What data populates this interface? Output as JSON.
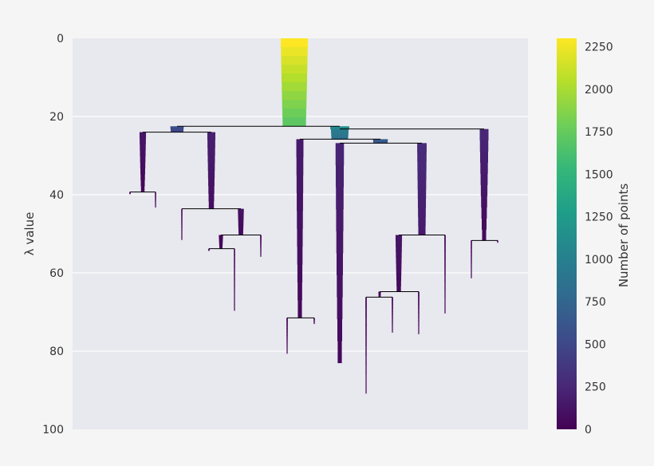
{
  "chart_data": {
    "type": "condensed-tree",
    "title": "",
    "xlabel": "",
    "ylabel": "λ value",
    "ylim": [
      0,
      100
    ],
    "y_inverted": true,
    "yticks": [
      0,
      20,
      40,
      60,
      80,
      100
    ],
    "colorbar": {
      "label": "Number of points",
      "colormap": "viridis",
      "range": [
        0,
        2300
      ],
      "ticks": [
        0,
        250,
        500,
        750,
        1000,
        1250,
        1500,
        1750,
        2000,
        2250
      ]
    },
    "max_points": 2300,
    "root": {
      "lambda_birth": 0,
      "lambda_split": 22.5,
      "points_start": 2300,
      "points_end": 1650
    },
    "clusters": [
      {
        "id": "A",
        "parent": "root",
        "lambda_birth": 22.5,
        "lambda_split": 24.0,
        "points_start": 560,
        "points_end": 480
      },
      {
        "id": "B",
        "parent": "root",
        "lambda_birth": 22.5,
        "lambda_split": 23.2,
        "points_start": 1120,
        "points_end": 1090
      },
      {
        "id": "A1",
        "parent": "A",
        "lambda_birth": 24.0,
        "lambda_split": 39.3,
        "points_start": 130,
        "points_end": 30
      },
      {
        "id": "A2",
        "parent": "A",
        "lambda_birth": 24.0,
        "lambda_split": 43.6,
        "points_start": 200,
        "points_end": 70
      },
      {
        "id": "A1a",
        "parent": "A1",
        "lambda_birth": 39.3,
        "lambda_split": 39.8,
        "points_start": 5,
        "points_end": 3
      },
      {
        "id": "A1b",
        "parent": "A1",
        "lambda_birth": 39.3,
        "lambda_split": 43.2,
        "points_start": 5,
        "points_end": 2
      },
      {
        "id": "A2a",
        "parent": "A2",
        "lambda_birth": 43.6,
        "lambda_split": 51.5,
        "points_start": 5,
        "points_end": 2
      },
      {
        "id": "A2b",
        "parent": "A2",
        "lambda_birth": 43.6,
        "lambda_split": 50.3,
        "points_start": 110,
        "points_end": 60
      },
      {
        "id": "A2b1",
        "parent": "A2b",
        "lambda_birth": 50.3,
        "lambda_split": 53.8,
        "points_start": 55,
        "points_end": 25
      },
      {
        "id": "A2b2",
        "parent": "A2b",
        "lambda_birth": 50.3,
        "lambda_split": 55.8,
        "points_start": 6,
        "points_end": 2
      },
      {
        "id": "A2b1a",
        "parent": "A2b1",
        "lambda_birth": 53.8,
        "lambda_split": 54.3,
        "points_start": 5,
        "points_end": 3
      },
      {
        "id": "A2b1b",
        "parent": "A2b1",
        "lambda_birth": 53.8,
        "lambda_split": 69.6,
        "points_start": 5,
        "points_end": 2
      },
      {
        "id": "B1",
        "parent": "B",
        "lambda_birth": 23.2,
        "lambda_split": 25.8,
        "points_start": 980,
        "points_end": 850
      },
      {
        "id": "B2",
        "parent": "B",
        "lambda_birth": 23.2,
        "lambda_split": 51.7,
        "points_start": 240,
        "points_end": 30
      },
      {
        "id": "B1a",
        "parent": "B1",
        "lambda_birth": 25.8,
        "lambda_split": 71.5,
        "points_start": 160,
        "points_end": 40
      },
      {
        "id": "B1b",
        "parent": "B1",
        "lambda_birth": 25.8,
        "lambda_split": 26.8,
        "points_start": 680,
        "points_end": 620
      },
      {
        "id": "B1a1",
        "parent": "B1a",
        "lambda_birth": 71.5,
        "lambda_split": 80.6,
        "points_start": 6,
        "points_end": 2
      },
      {
        "id": "B1a2",
        "parent": "B1a",
        "lambda_birth": 71.5,
        "lambda_split": 73.0,
        "points_start": 5,
        "points_end": 2
      },
      {
        "id": "B1b1",
        "parent": "B1b",
        "lambda_birth": 26.8,
        "lambda_split": 83.0,
        "points_start": 220,
        "points_end": 35
      },
      {
        "id": "B1b2",
        "parent": "B1b",
        "lambda_birth": 26.8,
        "lambda_split": 50.3,
        "points_start": 280,
        "points_end": 150
      },
      {
        "id": "B1b2a",
        "parent": "B1b2",
        "lambda_birth": 50.3,
        "lambda_split": 64.8,
        "points_start": 130,
        "points_end": 50
      },
      {
        "id": "B1b2b",
        "parent": "B1b2",
        "lambda_birth": 50.3,
        "lambda_split": 70.3,
        "points_start": 6,
        "points_end": 2
      },
      {
        "id": "B1b2a1",
        "parent": "B1b2a",
        "lambda_birth": 64.8,
        "lambda_split": 66.2,
        "points_start": 20,
        "points_end": 10
      },
      {
        "id": "B1b2a2",
        "parent": "B1b2a",
        "lambda_birth": 64.8,
        "lambda_split": 75.6,
        "points_start": 6,
        "points_end": 2
      },
      {
        "id": "B1b2a1a",
        "parent": "B1b2a1",
        "lambda_birth": 66.2,
        "lambda_split": 90.8,
        "points_start": 6,
        "points_end": 2
      },
      {
        "id": "B1b2a1b",
        "parent": "B1b2a1",
        "lambda_birth": 66.2,
        "lambda_split": 75.2,
        "points_start": 6,
        "points_end": 2
      },
      {
        "id": "B2a",
        "parent": "B2",
        "lambda_birth": 51.7,
        "lambda_split": 61.3,
        "points_start": 5,
        "points_end": 2
      },
      {
        "id": "B2b",
        "parent": "B2",
        "lambda_birth": 51.7,
        "lambda_split": 52.2,
        "points_start": 4,
        "points_end": 2
      }
    ]
  }
}
